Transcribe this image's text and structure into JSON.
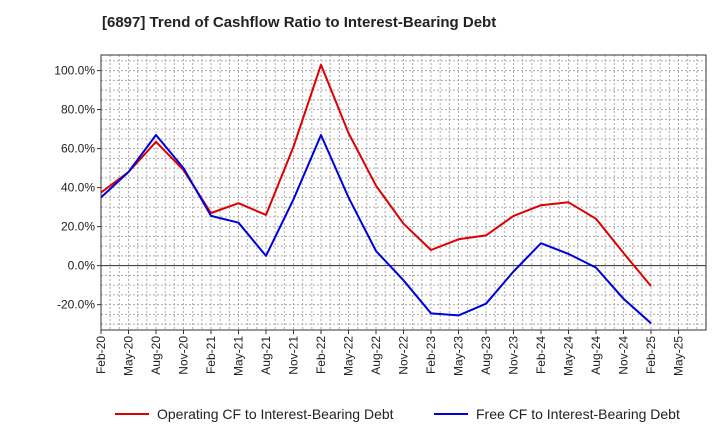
{
  "chart_data": {
    "type": "line",
    "title": "[6897]  Trend of Cashflow Ratio to Interest-Bearing Debt",
    "xlabel": "",
    "ylabel": "",
    "ylim": [
      -33,
      108
    ],
    "y_ticks": [
      "100.0%",
      "80.0%",
      "60.0%",
      "40.0%",
      "20.0%",
      "0.0%",
      "-20.0%"
    ],
    "y_tick_values": [
      100,
      80,
      60,
      40,
      20,
      0,
      -20
    ],
    "x_tick_labels": [
      "Feb-20",
      "May-20",
      "Aug-20",
      "Nov-20",
      "Feb-21",
      "May-21",
      "Aug-21",
      "Nov-21",
      "Feb-22",
      "May-22",
      "Aug-22",
      "Nov-22",
      "Feb-23",
      "May-23",
      "Aug-23",
      "Nov-23",
      "Feb-24",
      "May-24",
      "Aug-24",
      "Nov-24",
      "Feb-25",
      "May-25"
    ],
    "grid": true,
    "legend_position": "bottom",
    "series": [
      {
        "name": "Operating CF to Interest-Bearing Debt",
        "color": "#dd0000",
        "values": [
          37.5,
          48,
          63.5,
          49,
          27,
          32,
          26,
          61,
          103,
          68,
          41,
          21.5,
          8,
          13.5,
          15.5,
          25.5,
          31,
          32.5,
          24,
          6.5,
          -10.5
        ]
      },
      {
        "name": "Free CF to Interest-Bearing Debt",
        "color": "#0000dd",
        "values": [
          35,
          48,
          67,
          50,
          25.5,
          22,
          5,
          34,
          67,
          35,
          7.5,
          -7.5,
          -24.5,
          -25.5,
          -19.5,
          -3,
          11.5,
          6,
          -1,
          -17,
          -29.5
        ]
      }
    ]
  }
}
